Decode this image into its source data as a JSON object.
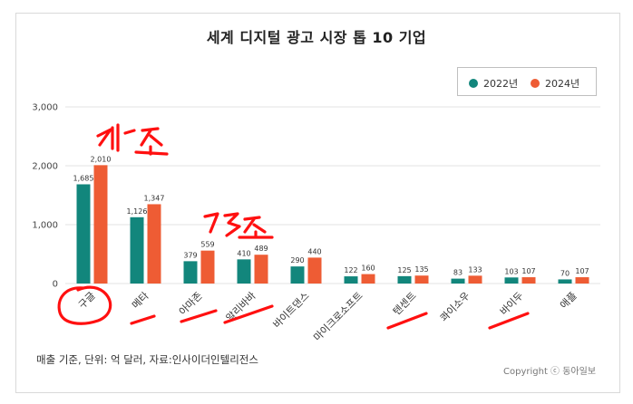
{
  "title": "세계 디지털 광고 시장 톱 10 기업",
  "legend": [
    {
      "label": "2022년",
      "color": "#12867c"
    },
    {
      "label": "2024년",
      "color": "#ee5c34"
    }
  ],
  "footnote": "매출 기준, 단위: 억 달러, 자료:인사이더인텔리전스",
  "copyright": "Copyright ⓒ 동아일보",
  "chart_data": {
    "type": "bar",
    "title": "세계 디지털 광고 시장 톱 10 기업",
    "categories": [
      "구글",
      "메타",
      "아마존",
      "알리바바",
      "바이트댄스",
      "마이크로소프트",
      "텐센트",
      "콰이소우",
      "바이두",
      "애플"
    ],
    "series": [
      {
        "name": "2022년",
        "color": "#12867c",
        "values": [
          1685,
          1126,
          379,
          410,
          290,
          122,
          125,
          83,
          103,
          70
        ]
      },
      {
        "name": "2024년",
        "color": "#ee5c34",
        "values": [
          2010,
          1347,
          559,
          489,
          440,
          160,
          135,
          133,
          107,
          107
        ]
      }
    ],
    "value_labels": [
      [
        "1,685",
        "1,126",
        "379",
        "410",
        "290",
        "122",
        "125",
        "83",
        "103",
        "70"
      ],
      [
        "2,010",
        "1,347",
        "559",
        "489",
        "440",
        "160",
        "135",
        "133",
        "107",
        "107"
      ]
    ],
    "yticks": [
      "0",
      "1,000",
      "2,000",
      "3,000"
    ],
    "ylim": [
      0,
      3000
    ],
    "grid": true,
    "legend_position": "top-right",
    "xlabel": "",
    "ylabel": ""
  }
}
